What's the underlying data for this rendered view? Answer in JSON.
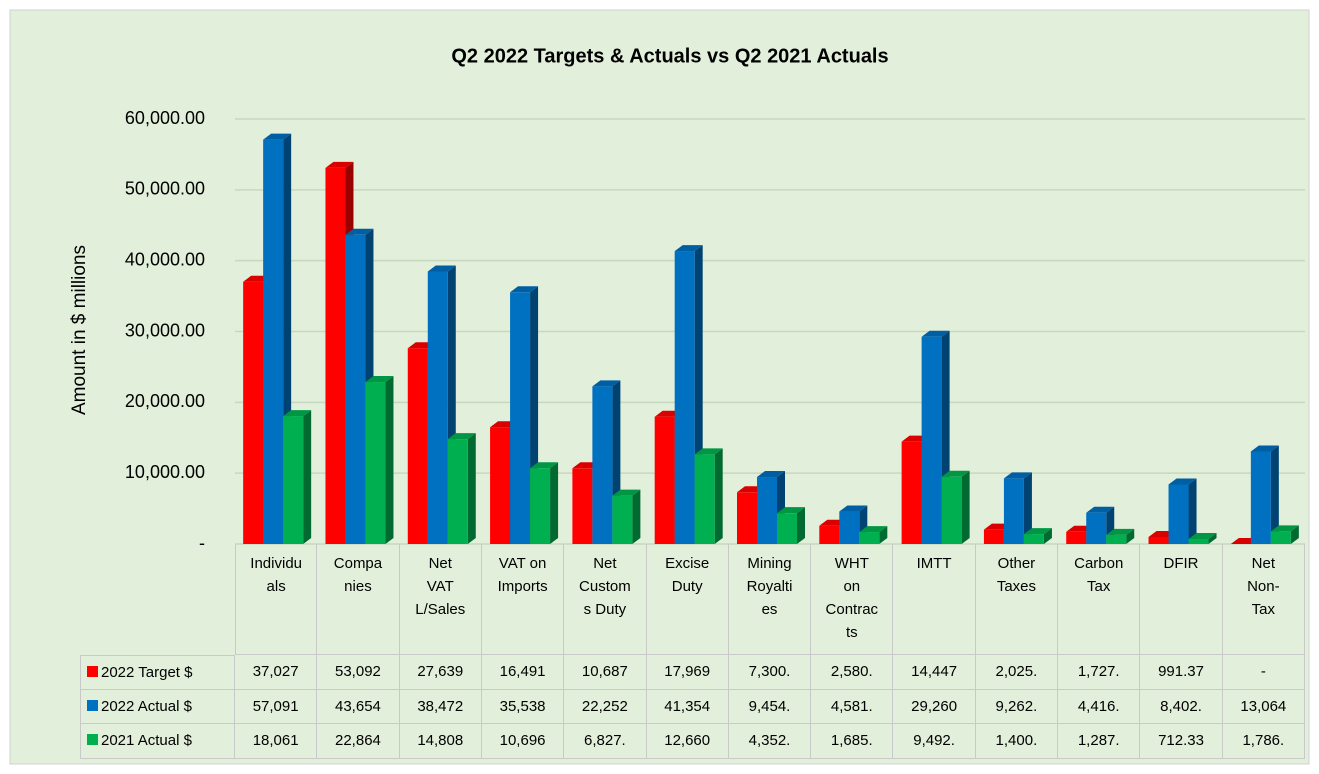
{
  "chart_data": {
    "type": "bar",
    "title": "Q2 2022 Targets & Actuals vs Q2 2021 Actuals",
    "y_label": "Amount in $ millions",
    "categories": [
      "Individuals",
      "Companies",
      "Net VAT L/Sales",
      "VAT on Imports",
      "Net Customs Duty",
      "Excise Duty",
      "Mining Royalties",
      "WHT on Contracts",
      "IMTT",
      "Other Taxes",
      "Carbon Tax",
      "DFIR",
      "Net Non-Tax"
    ],
    "series": [
      {
        "name": "2022 Target $",
        "color": "#ff0000",
        "values": [
          37027,
          53092,
          27639,
          16491,
          10687,
          17969,
          7300,
          2580,
          14447,
          2025,
          1727,
          991.37,
          0
        ],
        "value_labels": [
          "37,027",
          "53,092",
          "27,639",
          "16,491",
          "10,687",
          "17,969",
          "7,300.",
          "2,580.",
          "14,447",
          "2,025.",
          "1,727.",
          "991.37",
          "-"
        ]
      },
      {
        "name": "2022 Actual $",
        "color": "#0070c0",
        "values": [
          57091,
          43654,
          38472,
          35538,
          22252,
          41354,
          9454,
          4581,
          29260,
          9262,
          4416,
          8402,
          13064
        ],
        "value_labels": [
          "57,091",
          "43,654",
          "38,472",
          "35,538",
          "22,252",
          "41,354",
          "9,454.",
          "4,581.",
          "29,260",
          "9,262.",
          "4,416.",
          "8,402.",
          "13,064"
        ]
      },
      {
        "name": "2021 Actual $",
        "color": "#00b050",
        "values": [
          18061,
          22864,
          14808,
          10696,
          6827,
          12660,
          4352,
          1685,
          9492,
          1400,
          1287,
          712.33,
          1786
        ],
        "value_labels": [
          "18,061",
          "22,864",
          "14,808",
          "10,696",
          "6,827.",
          "12,660",
          "4,352.",
          "1,685.",
          "9,492.",
          "1,400.",
          "1,287.",
          "712.33",
          "1,786."
        ]
      }
    ],
    "ylim": [
      0,
      60000
    ],
    "yticks": [
      {
        "value": 0,
        "label": "-"
      },
      {
        "value": 10000,
        "label": "10,000.00"
      },
      {
        "value": 20000,
        "label": "20,000.00"
      },
      {
        "value": 30000,
        "label": "30,000.00"
      },
      {
        "value": 40000,
        "label": "40,000.00"
      },
      {
        "value": 50000,
        "label": "50,000.00"
      },
      {
        "value": 60000,
        "label": "60,000.00"
      }
    ],
    "grid": true
  }
}
